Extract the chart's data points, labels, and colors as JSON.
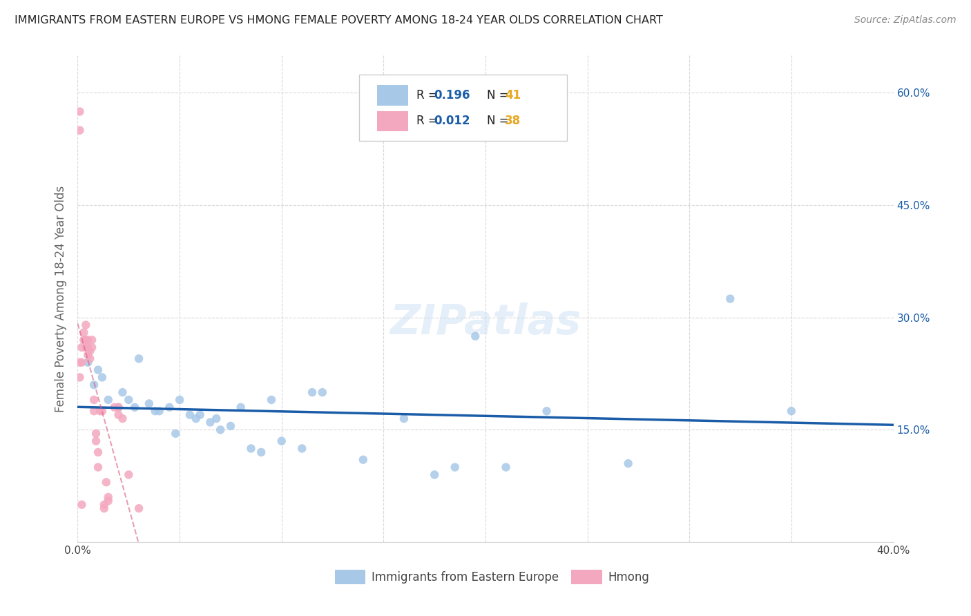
{
  "title": "IMMIGRANTS FROM EASTERN EUROPE VS HMONG FEMALE POVERTY AMONG 18-24 YEAR OLDS CORRELATION CHART",
  "source": "Source: ZipAtlas.com",
  "ylabel": "Female Poverty Among 18-24 Year Olds",
  "xlim": [
    0.0,
    0.4
  ],
  "ylim": [
    0.0,
    0.65
  ],
  "ytick_vals": [
    0.0,
    0.15,
    0.3,
    0.45,
    0.6
  ],
  "ytick_labels": [
    "",
    "15.0%",
    "30.0%",
    "45.0%",
    "60.0%"
  ],
  "xtick_vals": [
    0.0,
    0.05,
    0.1,
    0.15,
    0.2,
    0.25,
    0.3,
    0.35,
    0.4
  ],
  "xtick_labels": [
    "0.0%",
    "",
    "",
    "",
    "",
    "",
    "",
    "",
    "40.0%"
  ],
  "blue_R": 0.196,
  "blue_N": 41,
  "pink_R": 0.012,
  "pink_N": 38,
  "legend_label_blue": "Immigrants from Eastern Europe",
  "legend_label_pink": "Hmong",
  "blue_scatter_color": "#a8c8e8",
  "blue_line_color": "#1a5ca8",
  "pink_scatter_color": "#f4a8c0",
  "pink_line_color": "#d86080",
  "text_color": "#1a5ca8",
  "n_text_color": "#e8a820",
  "marker_size": 80,
  "blue_x": [
    0.005,
    0.008,
    0.01,
    0.012,
    0.015,
    0.02,
    0.022,
    0.025,
    0.028,
    0.03,
    0.035,
    0.038,
    0.04,
    0.045,
    0.048,
    0.05,
    0.055,
    0.058,
    0.06,
    0.065,
    0.068,
    0.07,
    0.075,
    0.08,
    0.085,
    0.09,
    0.1,
    0.115,
    0.12,
    0.14,
    0.175,
    0.195,
    0.21,
    0.23,
    0.27,
    0.32,
    0.35,
    0.16,
    0.095,
    0.11,
    0.185
  ],
  "blue_y": [
    0.24,
    0.21,
    0.23,
    0.22,
    0.19,
    0.18,
    0.2,
    0.19,
    0.18,
    0.245,
    0.185,
    0.175,
    0.175,
    0.18,
    0.145,
    0.19,
    0.17,
    0.165,
    0.17,
    0.16,
    0.165,
    0.15,
    0.155,
    0.18,
    0.125,
    0.12,
    0.135,
    0.2,
    0.2,
    0.11,
    0.09,
    0.275,
    0.1,
    0.175,
    0.105,
    0.325,
    0.175,
    0.165,
    0.19,
    0.125,
    0.1
  ],
  "pink_x": [
    0.001,
    0.001,
    0.002,
    0.003,
    0.003,
    0.004,
    0.004,
    0.005,
    0.005,
    0.005,
    0.006,
    0.006,
    0.007,
    0.007,
    0.008,
    0.008,
    0.009,
    0.009,
    0.01,
    0.01,
    0.011,
    0.012,
    0.013,
    0.013,
    0.014,
    0.015,
    0.015,
    0.018,
    0.02,
    0.02,
    0.022,
    0.025,
    0.03,
    0.001,
    0.001,
    0.002,
    0.004,
    0.002
  ],
  "pink_y": [
    0.575,
    0.55,
    0.26,
    0.28,
    0.27,
    0.29,
    0.27,
    0.27,
    0.26,
    0.25,
    0.255,
    0.245,
    0.27,
    0.26,
    0.19,
    0.175,
    0.145,
    0.135,
    0.12,
    0.1,
    0.175,
    0.175,
    0.05,
    0.045,
    0.08,
    0.06,
    0.055,
    0.18,
    0.18,
    0.17,
    0.165,
    0.09,
    0.045,
    0.22,
    0.24,
    0.24,
    0.26,
    0.05
  ],
  "watermark": "ZIPatlas",
  "grid_color": "#d8d8d8",
  "bg_color": "#ffffff"
}
